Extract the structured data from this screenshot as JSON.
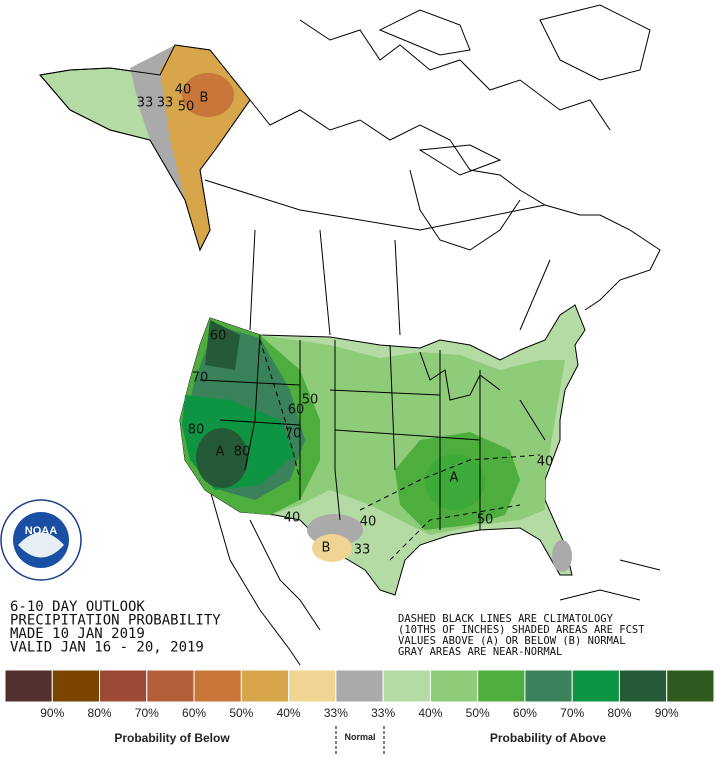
{
  "outlook": [
    "6-10 DAY OUTLOOK",
    "PRECIPITATION PROBABILITY",
    "MADE  10 JAN 2019",
    "VALID  JAN 16 - 20, 2019"
  ],
  "notes": [
    "DASHED BLACK LINES ARE CLIMATOLOGY",
    "(10THS OF INCHES) SHADED AREAS ARE FCST",
    "VALUES ABOVE (A) OR BELOW (B) NORMAL",
    "GRAY AREAS ARE NEAR-NORMAL"
  ],
  "logo": "NOAA",
  "map_labels": [
    "33",
    "33",
    "40",
    "50",
    "B",
    "60",
    "70",
    "80",
    "A",
    "80",
    "60",
    "50",
    "70",
    "40",
    "40",
    "B",
    "33",
    "A",
    "40",
    "50"
  ],
  "legend": {
    "colors": [
      "#53302d",
      "#7b4500",
      "#9c4a35",
      "#b3603a",
      "#c8763a",
      "#d7a64b",
      "#f0d491",
      "#aaaaaa",
      "#b4dba4",
      "#8fcc7a",
      "#4dae3d",
      "#3a8259",
      "#0d9543",
      "#245a36",
      "#2f5b1e"
    ],
    "labels": [
      "90%",
      "80%",
      "70%",
      "60%",
      "50%",
      "40%",
      "33%",
      "33%",
      "40%",
      "50%",
      "60%",
      "70%",
      "80%",
      "90%"
    ],
    "below": "Probability of Below",
    "normal": "Normal",
    "above": "Probability of Above"
  }
}
